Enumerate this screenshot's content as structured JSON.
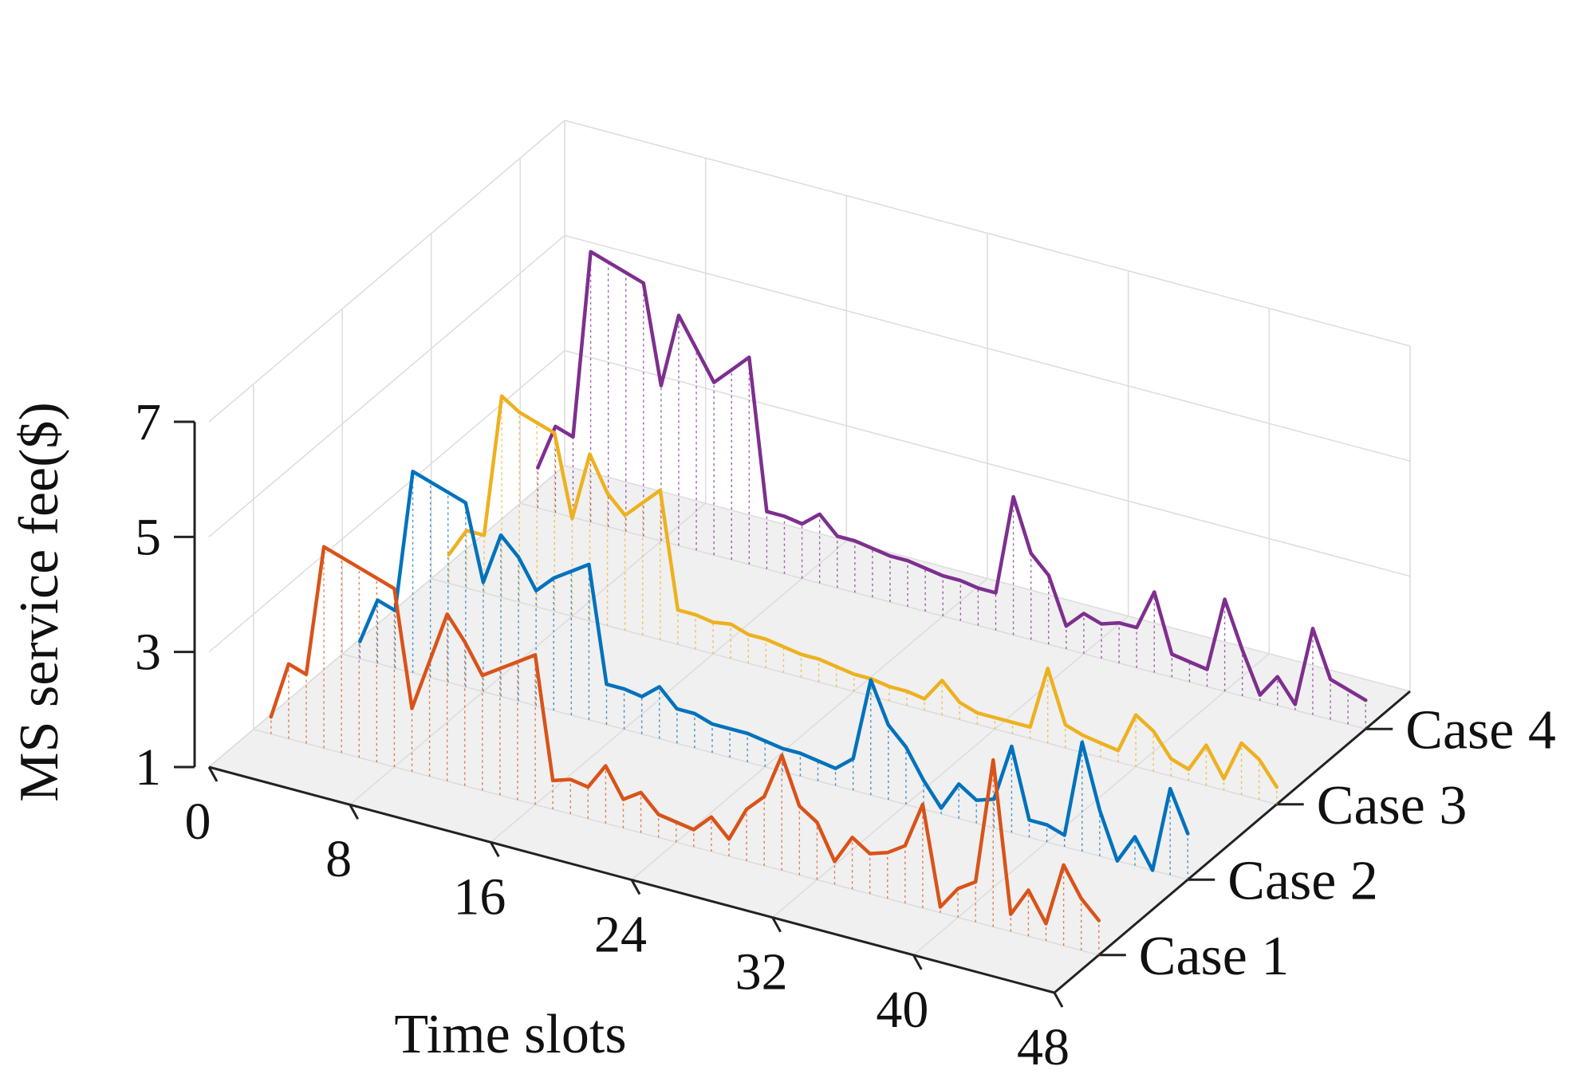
{
  "chart_data": {
    "type": "line",
    "projection": "3d",
    "title": "",
    "xlabel": "Time slots",
    "ylabel": "",
    "zlabel": "MS service fee($)",
    "xlim": [
      0,
      48
    ],
    "zlim": [
      1,
      7
    ],
    "x_ticks": [
      "0",
      "8",
      "16",
      "24",
      "32",
      "40",
      "48"
    ],
    "z_ticks": [
      "1",
      "3",
      "5",
      "7"
    ],
    "categories": [
      "Case 1",
      "Case 2",
      "Case 3",
      "Case 4"
    ],
    "x": [
      1,
      2,
      3,
      4,
      5,
      6,
      7,
      8,
      9,
      10,
      11,
      12,
      13,
      14,
      15,
      16,
      17,
      18,
      19,
      20,
      21,
      22,
      23,
      24,
      25,
      26,
      27,
      28,
      29,
      30,
      31,
      32,
      33,
      34,
      35,
      36,
      37,
      38,
      39,
      40,
      41,
      42,
      43,
      44,
      45,
      46,
      47,
      48
    ],
    "series": [
      {
        "name": "Case 1",
        "color": "#d95319",
        "values": [
          1.3,
          2.3,
          2.2,
          4.5,
          4.4,
          4.3,
          4.2,
          4.1,
          2.1,
          3.0,
          3.9,
          3.5,
          3.0,
          3.2,
          3.4,
          3.6,
          1.5,
          1.6,
          1.55,
          2.0,
          1.5,
          1.7,
          1.4,
          1.35,
          1.3,
          1.6,
          1.3,
          1.9,
          2.2,
          3.0,
          2.2,
          2.0,
          1.4,
          1.9,
          1.7,
          1.8,
          2.0,
          2.8,
          1.1,
          1.5,
          1.7,
          3.9,
          1.3,
          1.8,
          1.3,
          2.4,
          1.9,
          1.6
        ]
      },
      {
        "name": "Case 2",
        "color": "#0072bd",
        "values": [
          1.3,
          2.1,
          2.0,
          4.5,
          4.4,
          4.3,
          4.2,
          2.9,
          3.8,
          3.5,
          3.0,
          3.3,
          3.5,
          3.7,
          1.7,
          1.7,
          1.65,
          1.9,
          1.6,
          1.6,
          1.5,
          1.5,
          1.5,
          1.45,
          1.4,
          1.4,
          1.35,
          1.3,
          1.55,
          3.0,
          2.3,
          2.0,
          1.5,
          1.1,
          1.6,
          1.4,
          1.5,
          2.5,
          1.3,
          1.3,
          1.2,
          2.9,
          1.8,
          1.0,
          1.5,
          1.0,
          2.5,
          1.8
        ]
      },
      {
        "name": "Case 3",
        "color": "#edb120",
        "values": [
          1.5,
          2.0,
          2.0,
          4.5,
          4.3,
          4.2,
          4.1,
          2.7,
          3.9,
          3.3,
          3.0,
          3.3,
          3.6,
          1.6,
          1.6,
          1.55,
          1.6,
          1.5,
          1.5,
          1.45,
          1.4,
          1.4,
          1.35,
          1.3,
          1.3,
          1.25,
          1.25,
          1.2,
          1.6,
          1.3,
          1.2,
          1.2,
          1.2,
          1.2,
          2.3,
          1.4,
          1.3,
          1.25,
          1.2,
          1.9,
          1.7,
          1.3,
          1.2,
          1.7,
          1.2,
          1.9,
          1.7,
          1.3
        ]
      },
      {
        "name": "Case 4",
        "color": "#7e2f8e",
        "values": [
          1.7,
          2.5,
          2.4,
          5.7,
          5.6,
          5.5,
          5.4,
          3.7,
          5.0,
          4.5,
          4.0,
          4.3,
          4.6,
          2.0,
          2.0,
          1.95,
          2.2,
          1.9,
          1.9,
          1.85,
          1.8,
          1.8,
          1.75,
          1.7,
          1.7,
          1.65,
          1.65,
          3.4,
          2.5,
          2.2,
          1.4,
          1.7,
          1.6,
          1.7,
          1.7,
          2.4,
          1.4,
          1.35,
          1.3,
          2.6,
          1.8,
          1.1,
          1.5,
          1.1,
          2.5,
          1.7,
          1.6,
          1.5
        ]
      }
    ]
  }
}
